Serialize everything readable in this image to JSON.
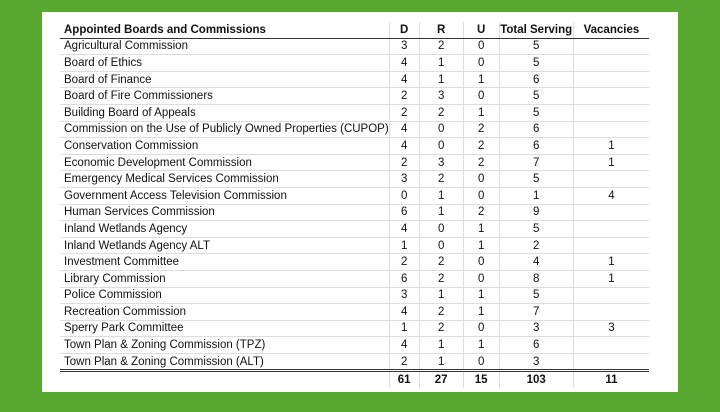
{
  "table": {
    "header": [
      "Appointed Boards and Commissions",
      "D",
      "R",
      "U",
      "Total Serving",
      "Vacancies"
    ],
    "rows": [
      [
        "Agricultural Commission",
        3,
        2,
        0,
        5,
        null
      ],
      [
        "Board of Ethics",
        4,
        1,
        0,
        5,
        null
      ],
      [
        "Board of Finance",
        4,
        1,
        1,
        6,
        null
      ],
      [
        "Board of Fire Commissioners",
        2,
        3,
        0,
        5,
        null
      ],
      [
        "Building Board of Appeals",
        2,
        2,
        1,
        5,
        null
      ],
      [
        "Commission on the Use of Publicly Owned Properties (CUPOP)",
        4,
        0,
        2,
        6,
        null
      ],
      [
        "Conservation Commission",
        4,
        0,
        2,
        6,
        1
      ],
      [
        "Economic Development Commission",
        2,
        3,
        2,
        7,
        1
      ],
      [
        "Emergency Medical Services Commission",
        3,
        2,
        0,
        5,
        null
      ],
      [
        "Government Access Television Commission",
        0,
        1,
        0,
        1,
        4
      ],
      [
        "Human Services Commission",
        6,
        1,
        2,
        9,
        null
      ],
      [
        "Inland Wetlands Agency",
        4,
        0,
        1,
        5,
        null
      ],
      [
        "Inland Wetlands Agency ALT",
        1,
        0,
        1,
        2,
        null
      ],
      [
        "Investment Committee",
        2,
        2,
        0,
        4,
        1
      ],
      [
        "Library Commission",
        6,
        2,
        0,
        8,
        1
      ],
      [
        "Police Commission",
        3,
        1,
        1,
        5,
        null
      ],
      [
        "Recreation Commission",
        4,
        2,
        1,
        7,
        null
      ],
      [
        "Sperry Park Committee",
        1,
        2,
        0,
        3,
        3
      ],
      [
        "Town Plan & Zoning Commission (TPZ)",
        4,
        1,
        1,
        6,
        null
      ],
      [
        "Town Plan & Zoning Commission (ALT)",
        2,
        1,
        0,
        3,
        null
      ]
    ],
    "totals": [
      null,
      61,
      27,
      15,
      103,
      11
    ]
  }
}
